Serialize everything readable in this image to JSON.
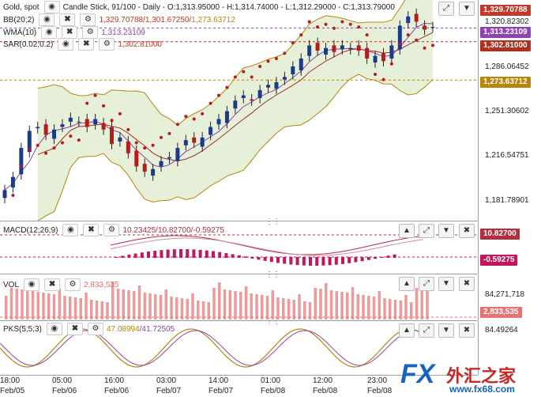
{
  "main": {
    "symbol": "Gold, spot",
    "chart_type": "Candle Stick, 91/100 - Daily",
    "ohlc": "- O:1,313.95000 - H:1,314.74000 - L:1,312.29000 - C:1,313.79000",
    "bb_label": "BB(20;2)",
    "bb_values_a": "1,329.70788",
    "bb_values_b": "/1,301.67250/",
    "bb_values_c": "1,273.63712",
    "wma_label": "WMA(10)",
    "wma_value": "1,313.23109",
    "sar_label": "SAR(0.02;0.2)",
    "sar_value": "1,302.81000",
    "y_ticks": [
      "1,320.82302",
      "1,286.06452",
      "1,251.30602",
      "1,216.54751",
      "1,181.78901"
    ],
    "tags": [
      {
        "text": "1,329.70788",
        "color": "#c0392b"
      },
      {
        "text": "1,313.23109",
        "color": "#8e44ad"
      },
      {
        "text": "1,302.81000",
        "color": "#b03020"
      },
      {
        "text": "1,273.63712",
        "color": "#b8860b"
      }
    ]
  },
  "macd": {
    "label": "MACD(12;26;9)",
    "values": "10.23425/10.82700/-0.59275",
    "tags": [
      {
        "text": "10.82700",
        "color": "#b03040"
      },
      {
        "text": "-0.59275",
        "color": "#c2185b"
      }
    ]
  },
  "vol": {
    "label": "VOL",
    "value": "2,833,535",
    "y_tick": "84,271,718",
    "tag": {
      "text": "2,833,535",
      "color": "#e57373"
    }
  },
  "pks": {
    "label": "PKS(5;5;3)",
    "values_a": "47.08994",
    "values_b": "/41.72505",
    "y_tick": "84.49264"
  },
  "x_axis": {
    "times": [
      "18:00",
      "05:00",
      "16:00",
      "03:00",
      "14:00",
      "01:00",
      "12:00",
      "23:00"
    ],
    "dates": [
      "Feb/05",
      "Feb/06",
      "Feb/06",
      "Feb/07",
      "Feb/07",
      "Feb/08",
      "Feb/08",
      "Feb/08"
    ]
  },
  "watermark": {
    "brand": "FX",
    "cn": "外汇之家",
    "url": "www.fx68.com"
  },
  "chart_data": {
    "type": "candlestick",
    "title": "Gold, spot",
    "close": [
      1190,
      1200,
      1222,
      1235,
      1238,
      1232,
      1236,
      1240,
      1245,
      1242,
      1238,
      1244,
      1236,
      1225,
      1230,
      1218,
      1208,
      1204,
      1206,
      1212,
      1215,
      1222,
      1228,
      1226,
      1230,
      1238,
      1244,
      1250,
      1258,
      1262,
      1258,
      1266,
      1270,
      1272,
      1276,
      1284,
      1290,
      1300,
      1296,
      1298,
      1295,
      1300,
      1298,
      1296,
      1290,
      1292,
      1288,
      1300,
      1315,
      1322,
      1318,
      1312,
      1314
    ],
    "ylim": [
      1181.78901,
      1329.70788
    ]
  }
}
